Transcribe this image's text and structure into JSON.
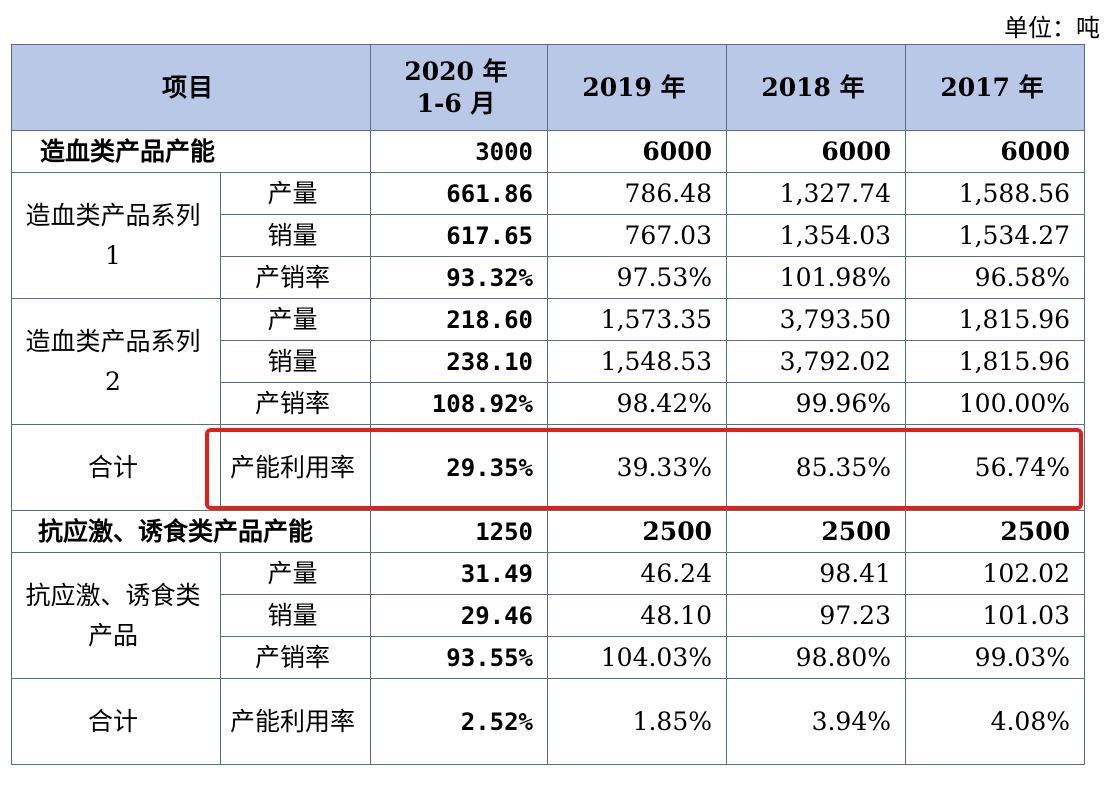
{
  "unit_label": "单位：吨",
  "headers": [
    "项目",
    "2020 年\n1-6 月",
    "2019 年",
    "2018 年",
    "2017 年"
  ],
  "rows": {
    "cap1": {
      "name": "造血类产品产能",
      "values": [
        "3000",
        "6000",
        "6000",
        "6000"
      ]
    },
    "s1_name": "造血类产品系列 1",
    "s1_prod": {
      "metric": "产量",
      "values": [
        "661.86",
        "786.48",
        "1,327.74",
        "1,588.56"
      ]
    },
    "s1_sales": {
      "metric": "销量",
      "values": [
        "617.65",
        "767.03",
        "1,354.03",
        "1,534.27"
      ]
    },
    "s1_rate": {
      "metric": "产销率",
      "values": [
        "93.32%",
        "97.53%",
        "101.98%",
        "96.58%"
      ]
    },
    "s2_name": "造血类产品系列 2",
    "s2_prod": {
      "metric": "产量",
      "values": [
        "218.60",
        "1,573.35",
        "3,793.50",
        "1,815.96"
      ]
    },
    "s2_sales": {
      "metric": "销量",
      "values": [
        "238.10",
        "1,548.53",
        "3,792.02",
        "1,815.96"
      ]
    },
    "s2_rate": {
      "metric": "产销率",
      "values": [
        "108.92%",
        "98.42%",
        "99.96%",
        "100.00%"
      ]
    },
    "total1": {
      "name": "合计",
      "metric": "产能利用率",
      "values": [
        "29.35%",
        "39.33%",
        "85.35%",
        "56.74%"
      ]
    },
    "cap2": {
      "name": "抗应激、诱食类产品产能",
      "values": [
        "1250",
        "2500",
        "2500",
        "2500"
      ]
    },
    "s3_name": "抗应激、诱食类产品",
    "s3_prod": {
      "metric": "产量",
      "values": [
        "31.49",
        "46.24",
        "98.41",
        "102.02"
      ]
    },
    "s3_sales": {
      "metric": "销量",
      "values": [
        "29.46",
        "48.10",
        "97.23",
        "101.03"
      ]
    },
    "s3_rate": {
      "metric": "产销率",
      "values": [
        "93.55%",
        "104.03%",
        "98.80%",
        "99.03%"
      ]
    },
    "total2": {
      "name": "合计",
      "metric": "产能利用率",
      "values": [
        "2.52%",
        "1.85%",
        "3.94%",
        "4.08%"
      ]
    }
  },
  "highlight_color": "#e0201a",
  "header_bg": "#b8c8e6"
}
